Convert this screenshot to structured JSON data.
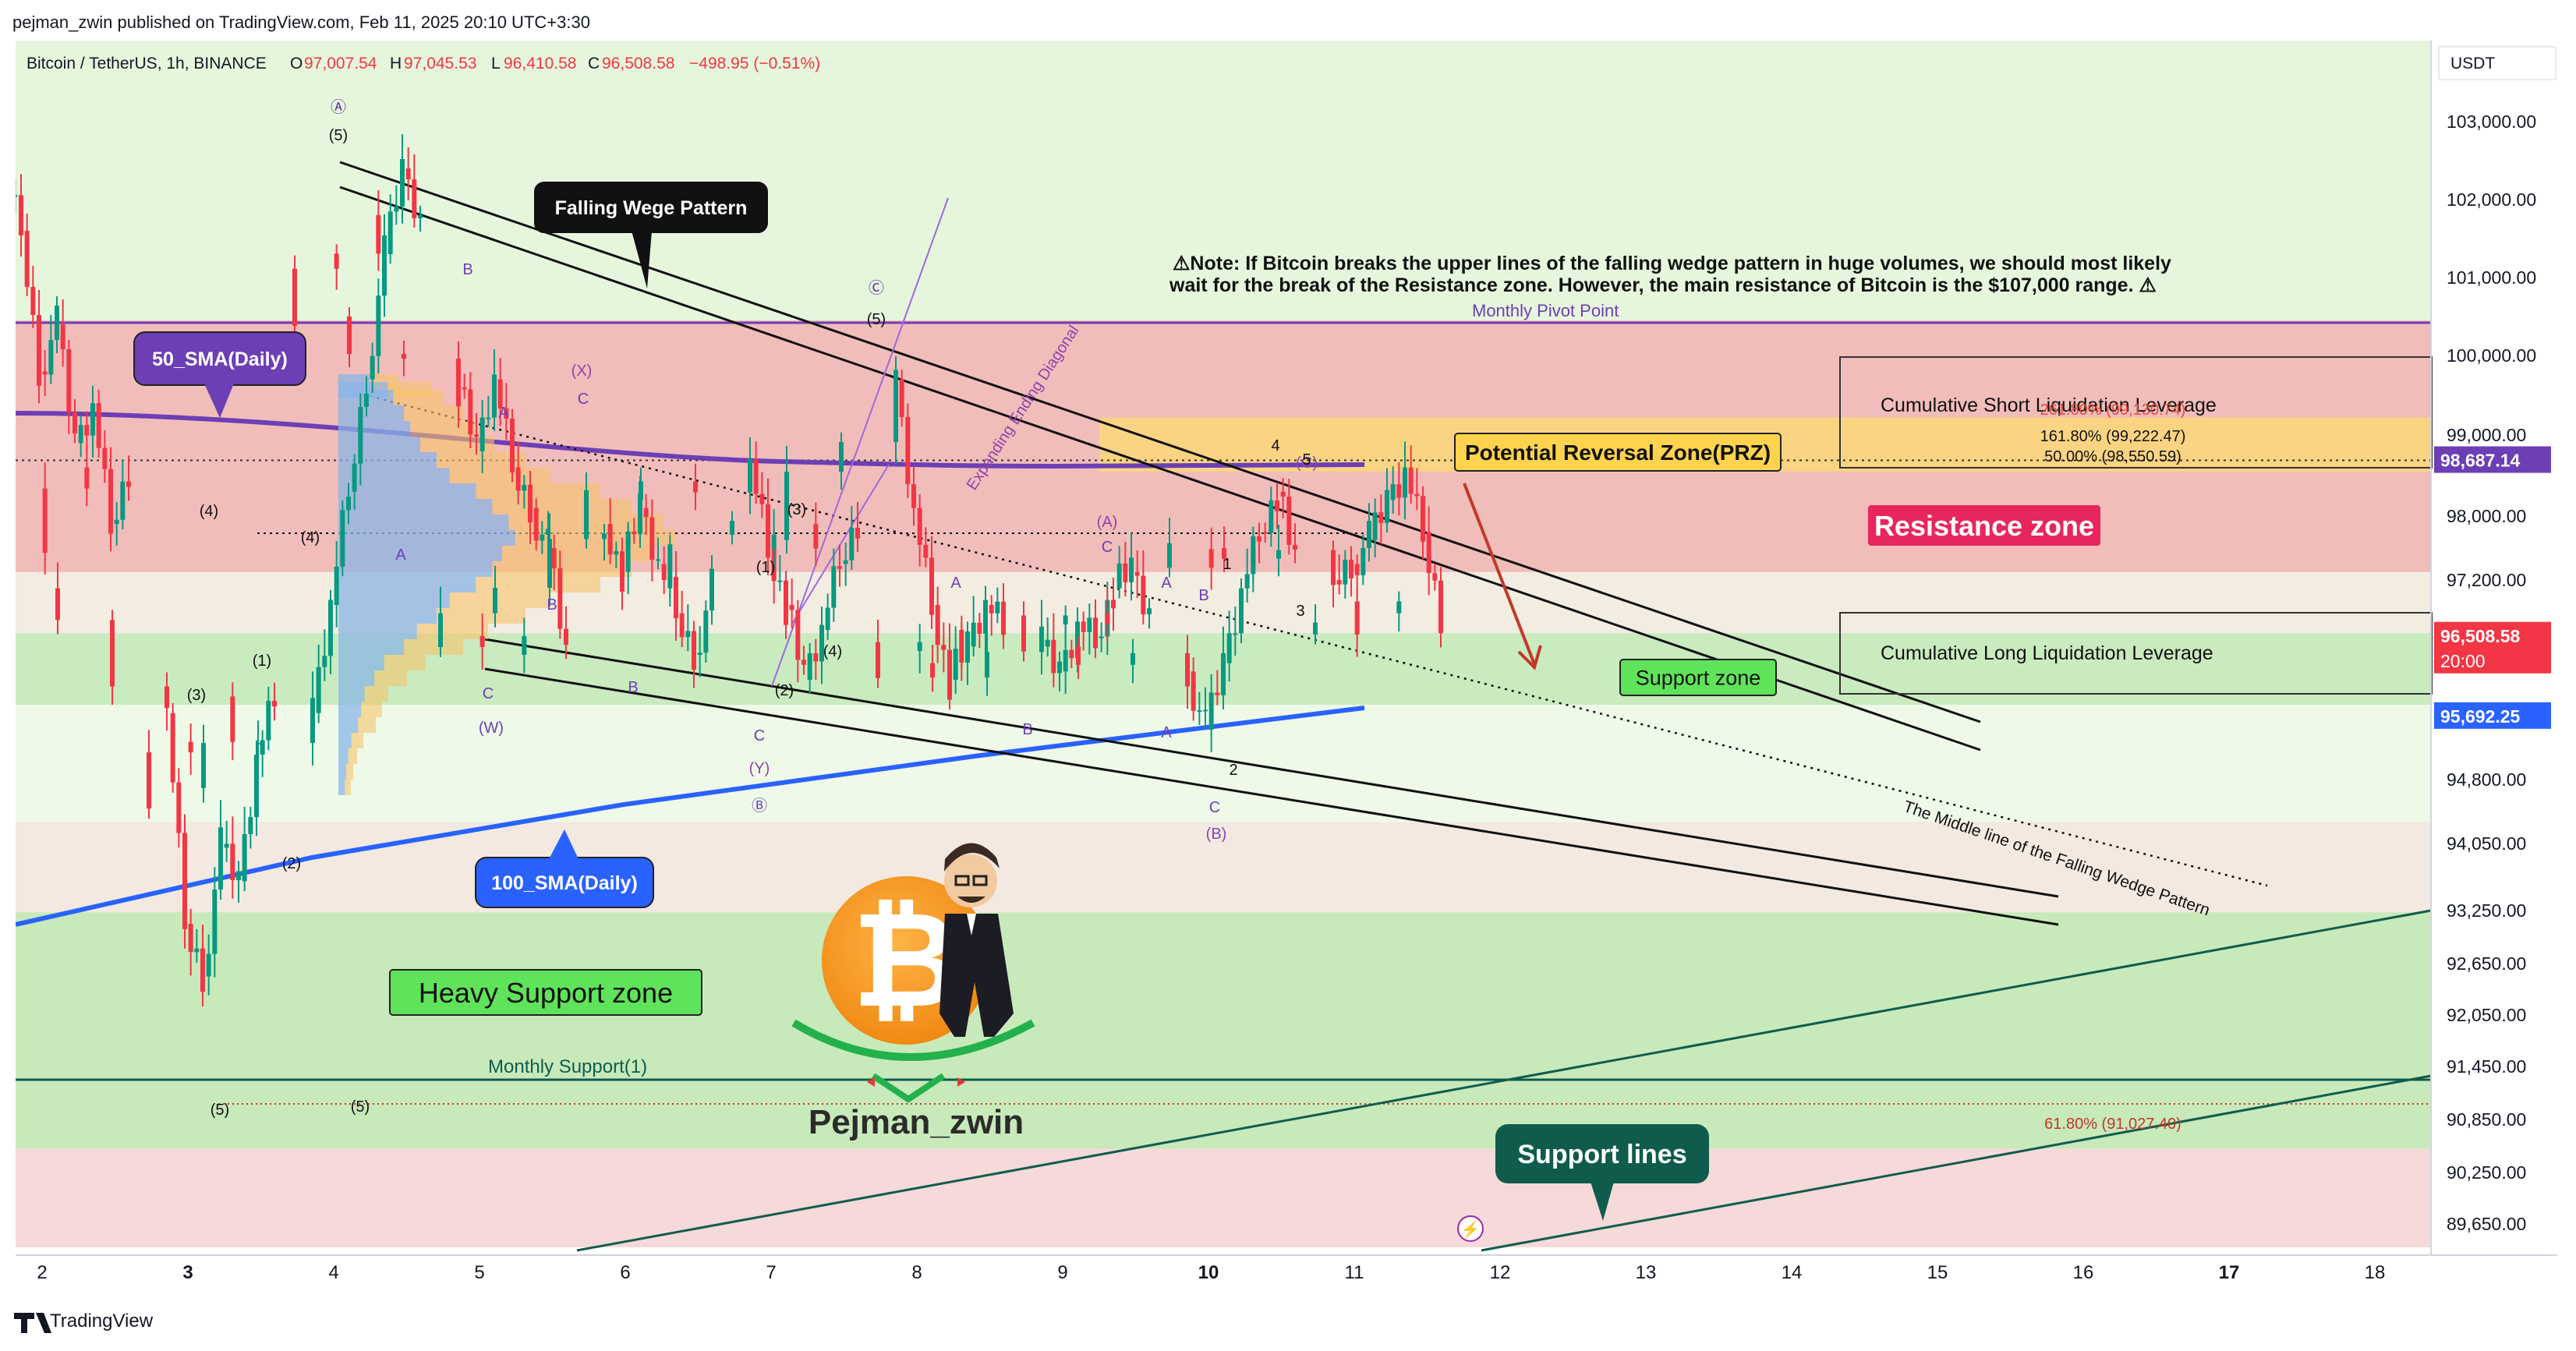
{
  "header": {
    "published": "pejman_zwin published on TradingView.com, Feb 11, 2025 20:10 UTC+3:30",
    "symbol": "Bitcoin / TetherUS, 1h, BINANCE",
    "o_label": "O",
    "o_value": "97,007.54",
    "h_label": "H",
    "h_value": "97,045.53",
    "l_label": "L",
    "l_value": "96,410.58",
    "c_label": "C",
    "c_value": "96,508.58",
    "change": "−498.95 (−0.51%)"
  },
  "footer": {
    "brand": "TradingView"
  },
  "colors": {
    "up": "#089981",
    "down": "#f23645",
    "sma50": "#6c3fb5",
    "sma100": "#2962ff",
    "resistance": "#f0b4b4",
    "support": "#bfe6b4",
    "prz": "#ffd77a"
  },
  "chart_data": {
    "type": "candlestick",
    "symbol": "Bitcoin / TetherUS",
    "timeframe": "1h",
    "exchange": "BINANCE",
    "currency_label": "USDT",
    "x_ticks": [
      "2",
      "3",
      "4",
      "5",
      "6",
      "7",
      "8",
      "9",
      "10",
      "11",
      "12",
      "13",
      "14",
      "15",
      "16",
      "17",
      "18"
    ],
    "y_ticks": [
      "103,000.00",
      "102,000.00",
      "101,000.00",
      "100,000.00",
      "99,000.00",
      "98,000.00",
      "97,200.00",
      "94,800.00",
      "94,050.00",
      "93,250.00",
      "92,650.00",
      "92,050.00",
      "91,450.00",
      "90,850.00",
      "90,250.00",
      "89,650.00"
    ],
    "ohlc_last": {
      "open": 97007.54,
      "high": 97045.53,
      "low": 96410.58,
      "close": 96508.58
    },
    "price_labels": [
      {
        "text": "98,687.14",
        "kind": "sma50"
      },
      {
        "text": "96,508.58",
        "kind": "last"
      },
      {
        "text": "20:00",
        "kind": "last-time"
      },
      {
        "text": "95,692.25",
        "kind": "sma100"
      }
    ],
    "path_daily": [
      [
        "2",
        102250
      ],
      [
        "2",
        101600
      ],
      [
        "2",
        99800
      ],
      [
        "2",
        100400
      ],
      [
        "2",
        98900
      ],
      [
        "2",
        99400
      ],
      [
        "2",
        97900
      ],
      [
        "2",
        98600
      ],
      [
        "2",
        97100
      ],
      [
        "3",
        95600
      ],
      [
        "3",
        93100
      ],
      [
        "3",
        92500
      ],
      [
        "3",
        94000
      ],
      [
        "3",
        93600
      ],
      [
        "3",
        95100
      ],
      [
        "3",
        95800
      ],
      [
        "3",
        94700
      ],
      [
        "4",
        95600
      ],
      [
        "4",
        96900
      ],
      [
        "4",
        98300
      ],
      [
        "4",
        99700
      ],
      [
        "4",
        101300
      ],
      [
        "4",
        102400
      ],
      [
        "4",
        101800
      ],
      [
        "4",
        100500
      ],
      [
        "5",
        99600
      ],
      [
        "5",
        98800
      ],
      [
        "5",
        99700
      ],
      [
        "5",
        98600
      ],
      [
        "5",
        98100
      ],
      [
        "5",
        97600
      ],
      [
        "5",
        96300
      ],
      [
        "5",
        96800
      ],
      [
        "6",
        97900
      ],
      [
        "6",
        97300
      ],
      [
        "6",
        98100
      ],
      [
        "6",
        97400
      ],
      [
        "6",
        96800
      ],
      [
        "6",
        96300
      ],
      [
        "6",
        97100
      ],
      [
        "6",
        98200
      ],
      [
        "7",
        98700
      ],
      [
        "7",
        97600
      ],
      [
        "7",
        96900
      ],
      [
        "7",
        96000
      ],
      [
        "7",
        96600
      ],
      [
        "7",
        97400
      ],
      [
        "7",
        97900
      ],
      [
        "7",
        97700
      ],
      [
        "8",
        99700
      ],
      [
        "8",
        98100
      ],
      [
        "8",
        96900
      ],
      [
        "8",
        96000
      ],
      [
        "8",
        96400
      ],
      [
        "8",
        96900
      ],
      [
        "8",
        96600
      ],
      [
        "8",
        96200
      ],
      [
        "9",
        96400
      ],
      [
        "9",
        96100
      ],
      [
        "9",
        96700
      ],
      [
        "9",
        96500
      ],
      [
        "9",
        97100
      ],
      [
        "9",
        97300
      ],
      [
        "9",
        96800
      ],
      [
        "9",
        96400
      ],
      [
        "10",
        96100
      ],
      [
        "10",
        95400
      ],
      [
        "10",
        96200
      ],
      [
        "10",
        97100
      ],
      [
        "10",
        97800
      ],
      [
        "10",
        98300
      ],
      [
        "10",
        97400
      ],
      [
        "10",
        97600
      ],
      [
        "11",
        97200
      ],
      [
        "11",
        97400
      ],
      [
        "11",
        97700
      ],
      [
        "11",
        98200
      ],
      [
        "11",
        98600
      ],
      [
        "11",
        97800
      ],
      [
        "11",
        96800
      ],
      [
        "11",
        96508
      ]
    ],
    "zones": [
      {
        "name": "Resistance zone",
        "from": 97300,
        "to": 100450
      },
      {
        "name": "Potential Reversal Zone(PRZ)",
        "from": 98550,
        "to": 99220
      },
      {
        "name": "Support zone",
        "from": 95700,
        "to": 96560
      },
      {
        "name": "Heavy Support zone",
        "from": 90520,
        "to": 93230
      }
    ],
    "fib_levels": [
      {
        "label": "261.80% (99,130.74)",
        "value": 99130.74
      },
      {
        "label": "161.80% (99,222.47)",
        "value": 99222.47
      },
      {
        "label": "50.00% (98,550.59)",
        "value": 98550.59
      },
      {
        "label": "61.80% (91,027.40)",
        "value": 91027.4
      }
    ],
    "annotations": {
      "falling_wedge": "Falling Wege Pattern",
      "sma50": "50_SMA(Daily)",
      "sma100": "100_SMA(Daily)",
      "prz": "Potential Reversal Zone(PRZ)",
      "resistance": "Resistance zone",
      "support": "Support zone",
      "heavy_support": "Heavy Support zone",
      "support_lines": "Support lines",
      "monthly_support": "Monthly Support(1)",
      "monthly_pivot": "Monthly Pivot Point",
      "short_liq": "Cumulative Short Liquidation Leverage",
      "long_liq": "Cumulative Long Liquidation Leverage",
      "middle_line": "The Middle line of the Falling Wedge Pattern",
      "expanding_diag": "Expanding Ending Diagonal",
      "note1": "⚠Note: If Bitcoin breaks the upper lines of the falling wedge pattern in huge volumes, we should most likely",
      "note2": "wait for the break of the Resistance zone. However, the main resistance of Bitcoin is the $107,000 range. ⚠",
      "author": "Pejman_zwin"
    },
    "wave_labels": [
      "Ⓐ",
      "(5)",
      "B",
      "(4)",
      "(3)",
      "(1)",
      "(2)",
      "(4)",
      "(5)",
      "(X)",
      "C",
      "A",
      "C",
      "(W)",
      "B",
      "A",
      "B",
      "C",
      "(Y)",
      "Ⓑ",
      "(1)",
      "(3)",
      "(2)",
      "(4)",
      "Ⓒ",
      "(5)",
      "A",
      "(A)",
      "C",
      "B",
      "A",
      "B",
      "A",
      "C",
      "(B)",
      "2",
      "1",
      "3",
      "4",
      "(C)",
      "5"
    ]
  }
}
